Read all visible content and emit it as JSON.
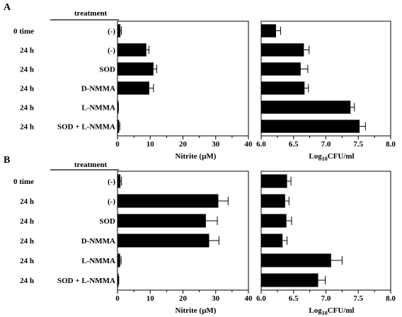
{
  "chart_data": [
    {
      "panel_label": "A",
      "header": "treatment",
      "rows": [
        {
          "time": "0 time",
          "treatment": "(-)",
          "nitrite": 0.9,
          "nitrite_err": 0.3,
          "cfu": 6.23,
          "cfu_err": 0.07
        },
        {
          "time": "24 h",
          "treatment": "(-)",
          "nitrite": 8.8,
          "nitrite_err": 0.8,
          "cfu": 6.66,
          "cfu_err": 0.08
        },
        {
          "time": "24 h",
          "treatment": "SOD",
          "nitrite": 11.0,
          "nitrite_err": 1.0,
          "cfu": 6.61,
          "cfu_err": 0.11
        },
        {
          "time": "24 h",
          "treatment": "D-NMMA",
          "nitrite": 9.7,
          "nitrite_err": 1.3,
          "cfu": 6.67,
          "cfu_err": 0.06
        },
        {
          "time": "24 h",
          "treatment": "L-NMMA",
          "nitrite": 0.2,
          "nitrite_err": 0.1,
          "cfu": 7.38,
          "cfu_err": 0.06
        },
        {
          "time": "24 h",
          "treatment": "SOD + L-NMMA",
          "nitrite": 0.5,
          "nitrite_err": 0.2,
          "cfu": 7.52,
          "cfu_err": 0.09
        }
      ],
      "left_axis": {
        "type": "bar",
        "xlabel": "Nitrite (µM)",
        "xlim": [
          0,
          40
        ],
        "ticks": [
          "0",
          "10",
          "20",
          "30",
          "40"
        ]
      },
      "right_axis": {
        "type": "bar",
        "xlabel": "Log10CFU/ml",
        "xlim": [
          6.0,
          8.0
        ],
        "ticks": [
          "6.0",
          "6.5",
          "7.0",
          "7.5",
          "8.0"
        ]
      }
    },
    {
      "panel_label": "B",
      "header": "treatment",
      "rows": [
        {
          "time": "0 time",
          "treatment": "(-)",
          "nitrite": 0.9,
          "nitrite_err": 0.3,
          "cfu": 6.4,
          "cfu_err": 0.06
        },
        {
          "time": "24 h",
          "treatment": "(-)",
          "nitrite": 30.8,
          "nitrite_err": 3.0,
          "cfu": 6.37,
          "cfu_err": 0.06
        },
        {
          "time": "24 h",
          "treatment": "SOD",
          "nitrite": 27.0,
          "nitrite_err": 3.5,
          "cfu": 6.39,
          "cfu_err": 0.08
        },
        {
          "time": "24 h",
          "treatment": "D-NMMA",
          "nitrite": 28.0,
          "nitrite_err": 3.0,
          "cfu": 6.33,
          "cfu_err": 0.07
        },
        {
          "time": "24 h",
          "treatment": "L-NMMA",
          "nitrite": 0.8,
          "nitrite_err": 0.3,
          "cfu": 7.08,
          "cfu_err": 0.17
        },
        {
          "time": "24 h",
          "treatment": "SOD + L-NMMA",
          "nitrite": 0.1,
          "nitrite_err": 0.3,
          "cfu": 6.88,
          "cfu_err": 0.11
        }
      ],
      "left_axis": {
        "type": "bar",
        "xlabel": "Nitrite (µM)",
        "xlim": [
          0,
          40
        ],
        "ticks": [
          "0",
          "10",
          "20",
          "30",
          "40"
        ]
      },
      "right_axis": {
        "type": "bar",
        "xlabel": "Log10CFU/ml",
        "xlim": [
          6.0,
          8.0
        ],
        "ticks": [
          "6.0",
          "6.5",
          "7.0",
          "7.5",
          "8.0"
        ]
      }
    }
  ],
  "colors": {
    "bar": "#000000",
    "axis": "#000000",
    "background": "#ffffff"
  }
}
